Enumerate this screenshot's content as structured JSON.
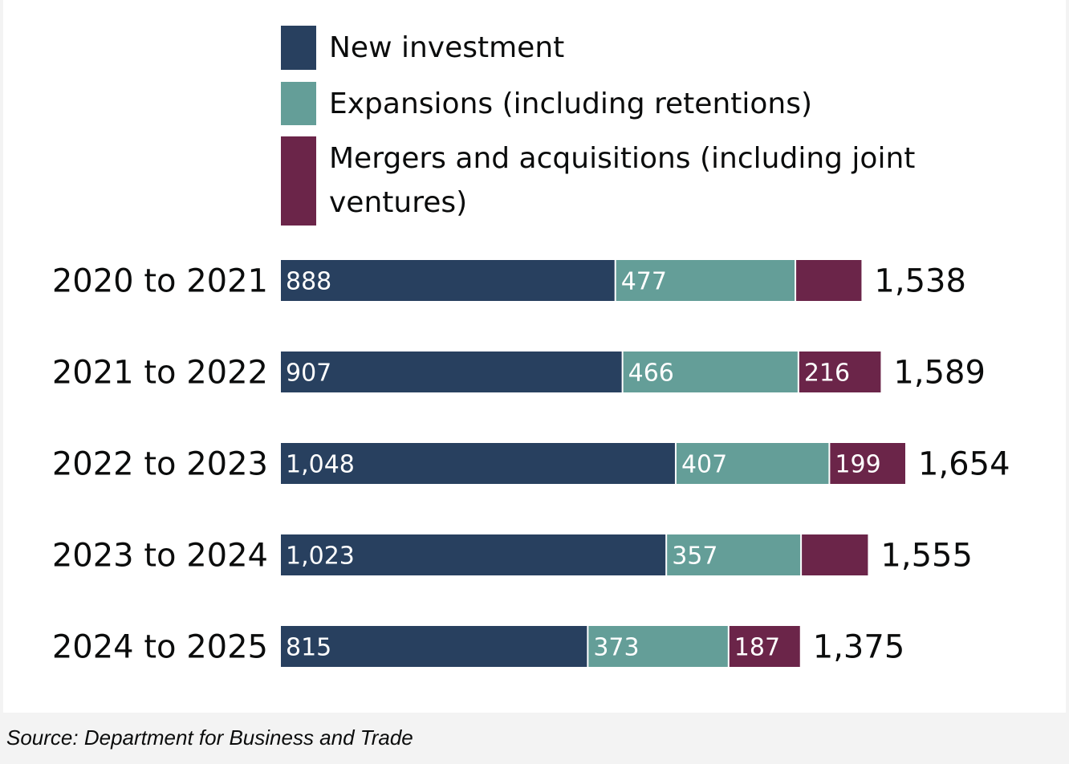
{
  "chart_data": {
    "type": "bar",
    "orientation": "horizontal",
    "stacked": true,
    "categories": [
      "2020 to 2021",
      "2021 to 2022",
      "2022 to 2023",
      "2023 to 2024",
      "2024 to 2025"
    ],
    "series": [
      {
        "name": "New investment",
        "color": "#28405f",
        "values": [
          888,
          907,
          1048,
          1023,
          815
        ],
        "labels": [
          "888",
          "907",
          "1,048",
          "1,023",
          "815"
        ]
      },
      {
        "name": "Expansions (including retentions)",
        "color": "#649e98",
        "values": [
          477,
          466,
          407,
          357,
          373
        ],
        "labels": [
          "477",
          "466",
          "407",
          "357",
          "373"
        ]
      },
      {
        "name": "Mergers and acquisitions (including joint ventures)",
        "color": "#6b2549",
        "values": [
          173,
          216,
          199,
          175,
          187
        ],
        "labels": [
          "",
          "216",
          "199",
          "",
          "187"
        ]
      }
    ],
    "totals": [
      1538,
      1589,
      1654,
      1555,
      1375
    ],
    "total_labels": [
      "1,538",
      "1,589",
      "1,654",
      "1,555",
      "1,375"
    ],
    "legend_position": "top",
    "grid": false,
    "xlim": [
      0,
      1654
    ]
  },
  "legend": {
    "new_investment": "New investment",
    "expansions": "Expansions (including retentions)",
    "mergers_line1": "Mergers and acquisitions (including joint",
    "mergers_line2": "ventures)"
  },
  "source": "Source: Department for Business and Trade"
}
